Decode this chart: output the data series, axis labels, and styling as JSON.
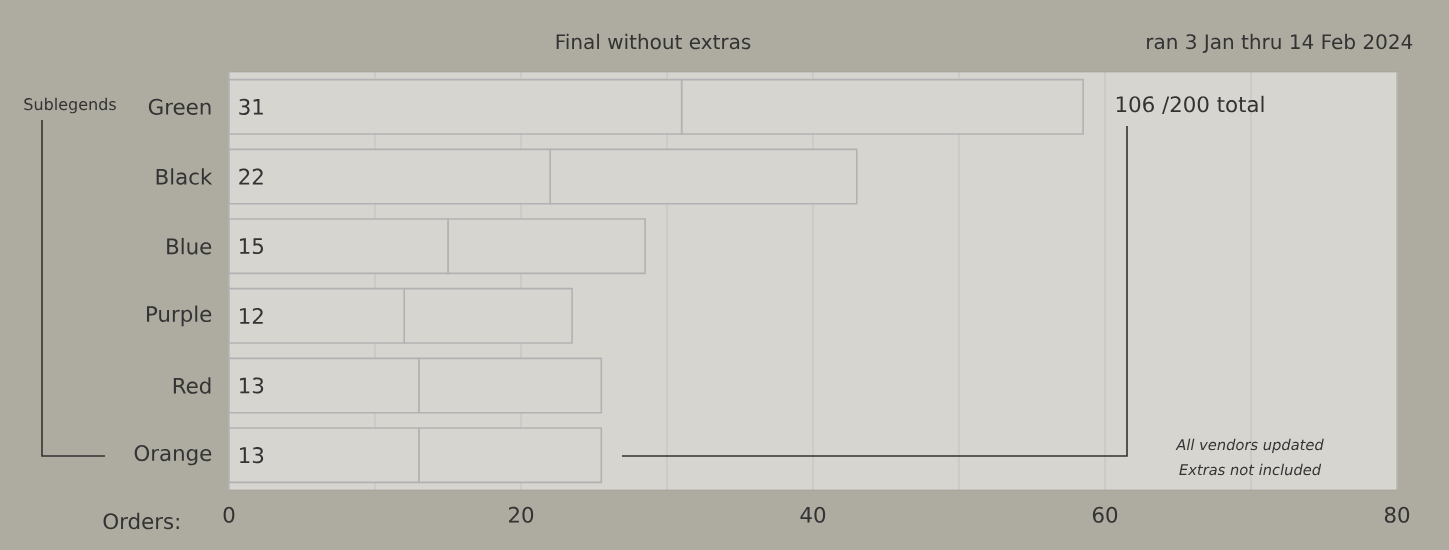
{
  "chart_data": {
    "type": "bar",
    "orientation": "horizontal",
    "stacked": true,
    "title": "Final without extras",
    "subtitle": "ran 3 Jan thru 14 Feb 2024",
    "xlabel": "Orders:",
    "categories": [
      "Green",
      "Black",
      "Blue",
      "Purple",
      "Red",
      "Orange"
    ],
    "series": [
      {
        "color": "#d6d5d0",
        "values": [
          31,
          22,
          15,
          12,
          13,
          13
        ],
        "value_labels": [
          "31",
          "22",
          "15",
          "12",
          "13",
          "13"
        ]
      },
      {
        "color": "#d6d5d0",
        "values": [
          27.5,
          21,
          13.5,
          11.5,
          12.5,
          12.5
        ]
      }
    ],
    "xlim": [
      0,
      80
    ],
    "xticks": [
      0,
      {
        "value": 10,
        "label": null
      },
      20,
      {
        "value": 30,
        "label": null
      },
      40,
      {
        "value": 50,
        "label": null
      },
      60,
      {
        "value": 70,
        "label": null
      },
      80
    ],
    "grid": "x",
    "annotations": [
      "Sublegends",
      "106 /200 total",
      "All vendors updated",
      "Extras not included"
    ]
  }
}
